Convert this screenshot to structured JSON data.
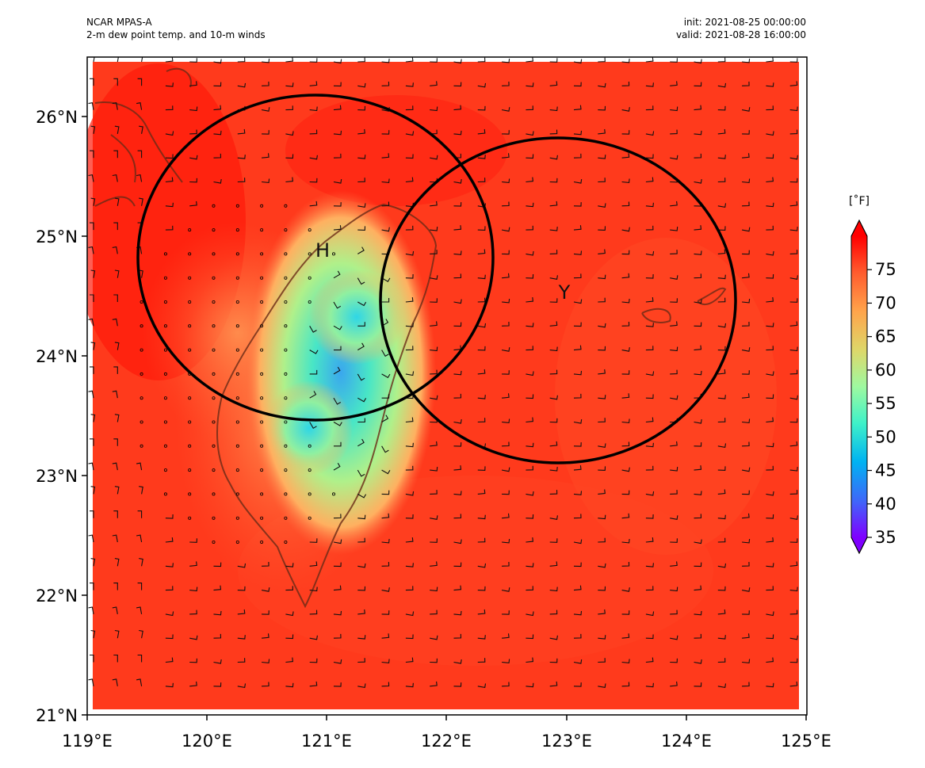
{
  "header": {
    "model": "NCAR MPAS-A",
    "title": "2-m dew point temp. and 10-m winds",
    "init": "init: 2021-08-25 00:00:00",
    "valid": "valid: 2021-08-28 16:00:00"
  },
  "map": {
    "lon_range": [
      119,
      125
    ],
    "lat_range": [
      21,
      26.5
    ],
    "lon_ticks": [
      "119°E",
      "120°E",
      "121°E",
      "122°E",
      "123°E",
      "124°E",
      "125°E"
    ],
    "lat_ticks": [
      "21°N",
      "22°N",
      "23°N",
      "24°N",
      "25°N",
      "26°N"
    ],
    "background_color": "#ff3a1c",
    "markers": [
      {
        "label": "H",
        "lon": 120.95,
        "lat": 24.87
      },
      {
        "label": "Y",
        "lon": 122.92,
        "lat": 24.55
      }
    ],
    "circles": [
      {
        "center_lon": 120.95,
        "center_lat": 24.83
      },
      {
        "center_lon": 122.95,
        "center_lat": 24.46
      }
    ]
  },
  "colorbar": {
    "units": "[˚F]",
    "ticks": [
      "35",
      "40",
      "45",
      "50",
      "55",
      "60",
      "65",
      "70",
      "75"
    ],
    "range": [
      35,
      80
    ],
    "colors": [
      "#7f00ff",
      "#3f66f9",
      "#00b2f2",
      "#3ff2c8",
      "#9ef9a0",
      "#ddd86a",
      "#ffa44b",
      "#ff5b2e",
      "#ff0000"
    ]
  }
}
